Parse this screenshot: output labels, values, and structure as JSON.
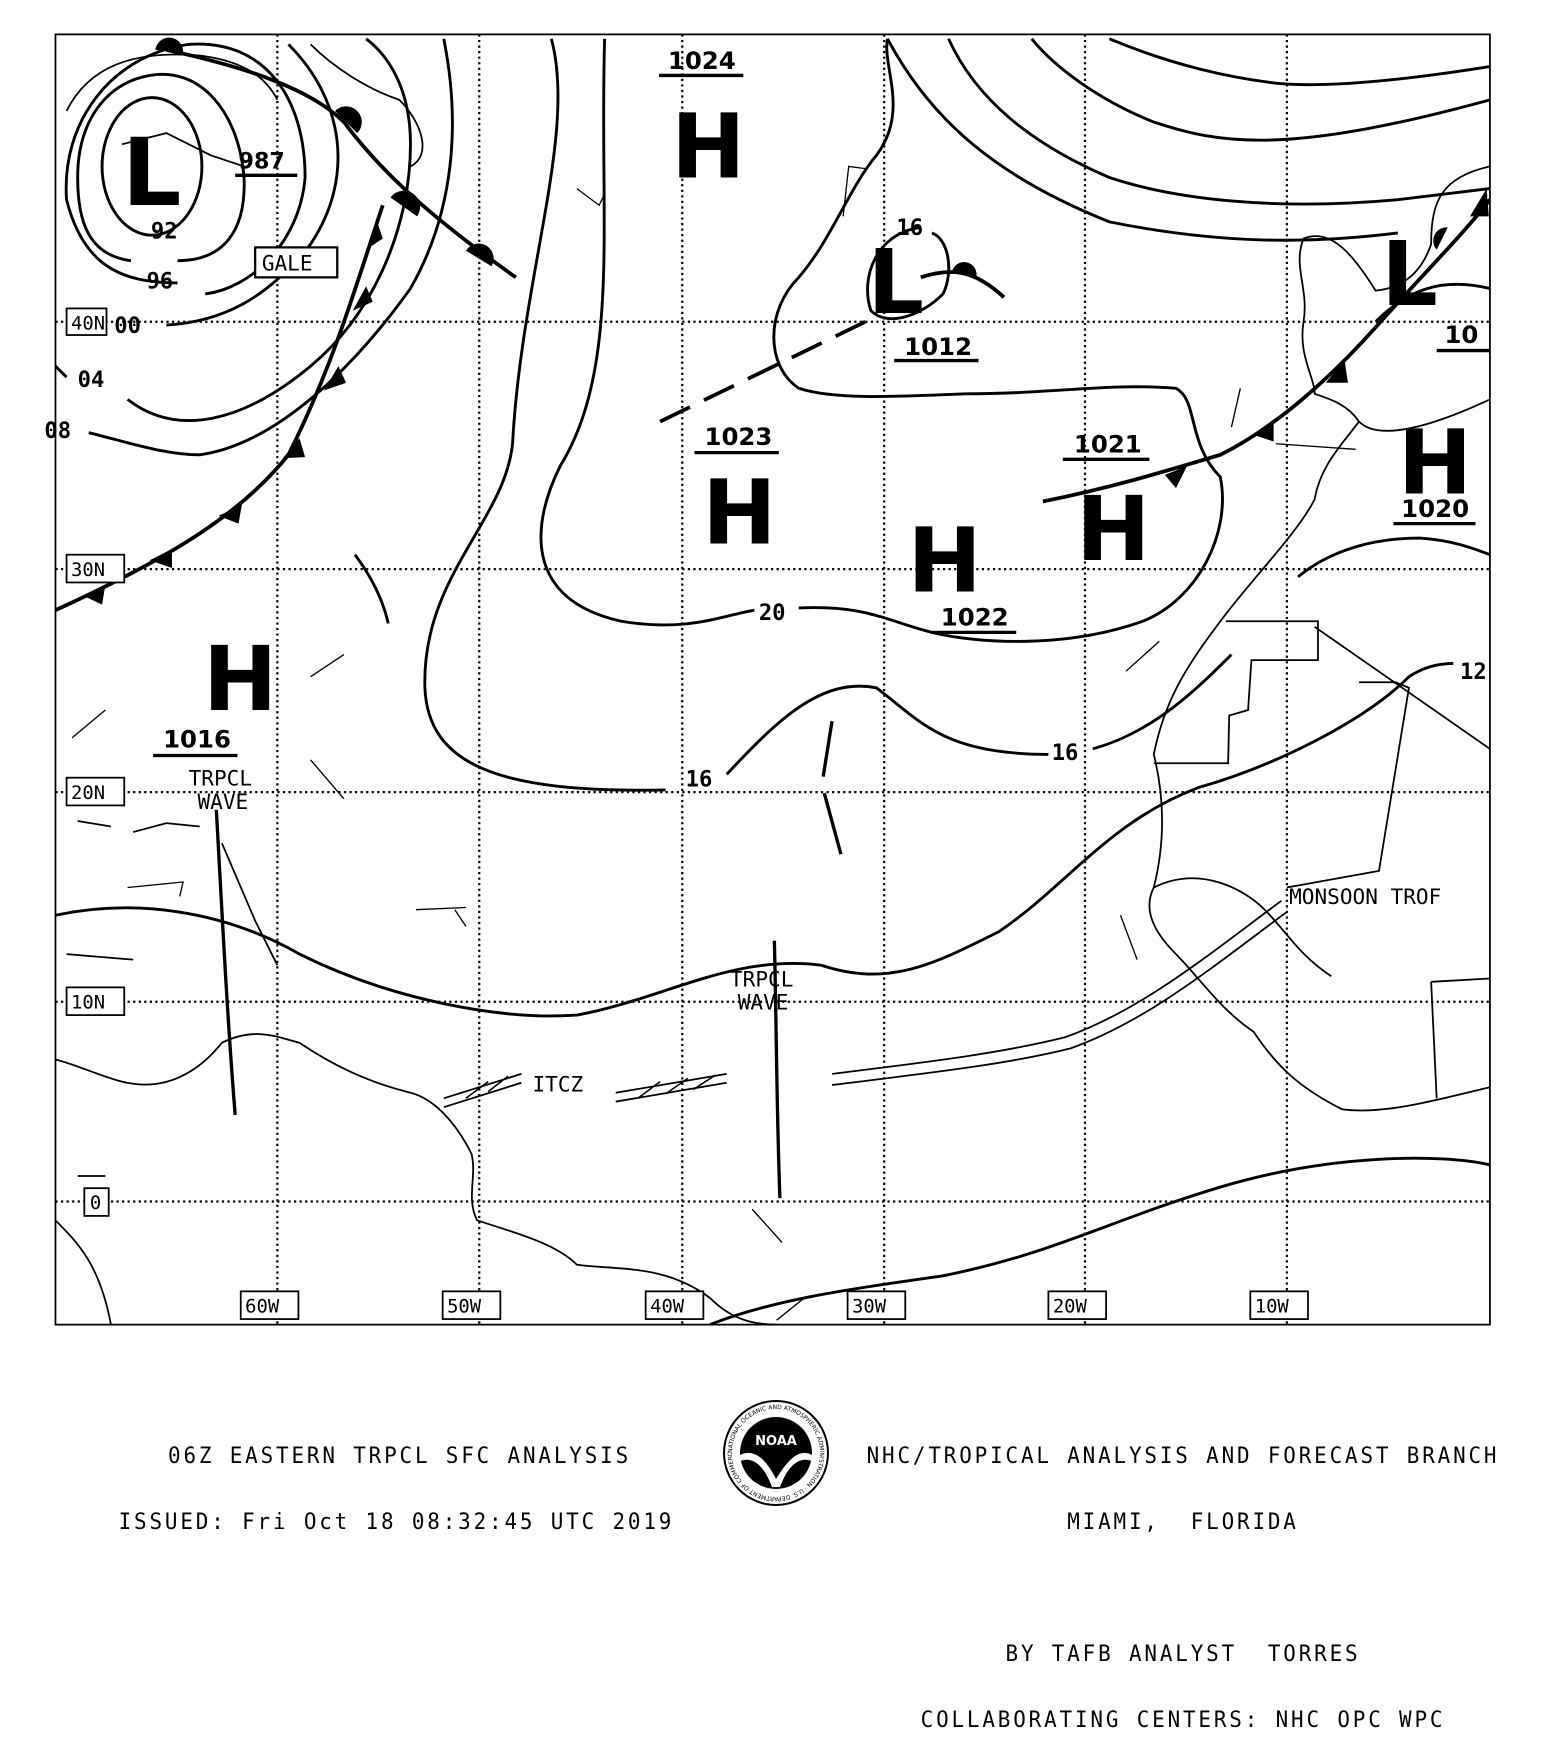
{
  "map": {
    "longitude_labels": [
      "60W",
      "50W",
      "40W",
      "30W",
      "20W",
      "10W"
    ],
    "latitude_labels": [
      "40N",
      "30N",
      "20N",
      "10N",
      "0"
    ],
    "pressure_centers": [
      {
        "type": "L",
        "value": "987"
      },
      {
        "type": "H",
        "value": "1024"
      },
      {
        "type": "L",
        "value": "1012"
      },
      {
        "type": "H",
        "value": "1023"
      },
      {
        "type": "H",
        "value": "1022"
      },
      {
        "type": "H",
        "value": "1021"
      },
      {
        "type": "L",
        "value": ""
      },
      {
        "type": "H",
        "value": "1020"
      },
      {
        "type": "H",
        "value": "1016"
      },
      {
        "type": "",
        "value": "10"
      }
    ],
    "isobar_labels": [
      "92",
      "96",
      "00",
      "04",
      "08",
      "16",
      "20",
      "16",
      "16",
      "12"
    ],
    "features": {
      "gale": "GALE",
      "wave1_line1": "TRPCL",
      "wave1_line2": "WAVE",
      "wave2_line1": "TRPCL",
      "wave2_line2": "WAVE",
      "itcz": "ITCZ",
      "monsoon": "MONSOON TROF"
    },
    "colors": {
      "ink": "#000000",
      "background": "#ffffff"
    }
  },
  "footer": {
    "title": "06Z EASTERN TRPCL SFC ANALYSIS",
    "issued": "ISSUED: Fri Oct 18 08:32:45 UTC 2019",
    "branch": "NHC/TROPICAL ANALYSIS AND FORECAST BRANCH",
    "location": "MIAMI,  FLORIDA",
    "analyst": "BY TAFB ANALYST  TORRES",
    "centers": "COLLABORATING CENTERS: NHC OPC WPC",
    "logo_text": "NOAA",
    "logo_ring_text": "NATIONAL OCEANIC AND ATMOSPHERIC ADMINISTRATION · U.S. DEPARTMENT OF COMMERCE"
  }
}
